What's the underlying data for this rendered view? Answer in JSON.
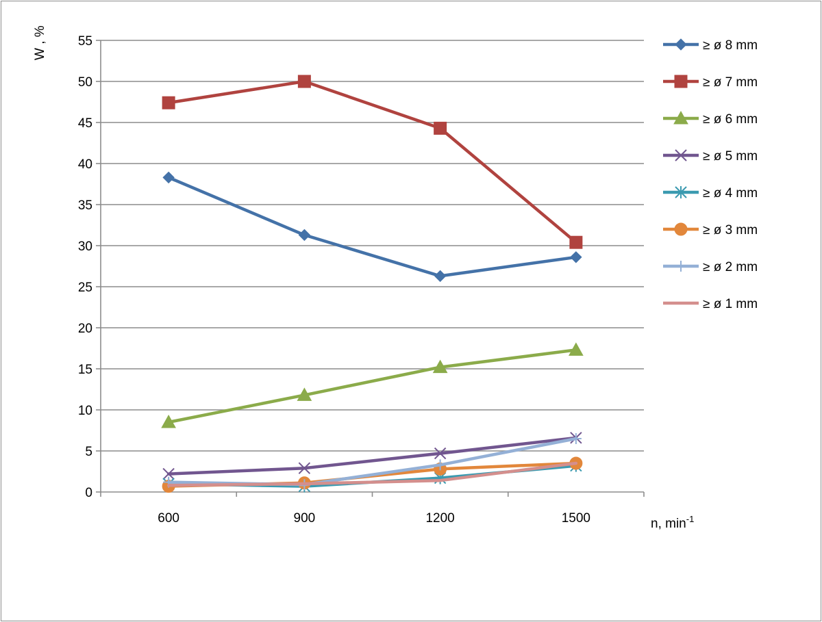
{
  "chart_data": {
    "type": "line",
    "title": "",
    "xlabel": "n,  min",
    "xlabel_sup": "-1",
    "ylabel": "W , %",
    "categories": [
      "600",
      "900",
      "1200",
      "1500"
    ],
    "ylim": [
      0,
      55
    ],
    "yticks": [
      0,
      5,
      10,
      15,
      20,
      25,
      30,
      35,
      40,
      45,
      50,
      55
    ],
    "grid": "horizontal",
    "legend_position": "right",
    "series": [
      {
        "name": "≥ ø 8 mm",
        "marker": "diamond",
        "color": "#4472a8",
        "values": [
          38.3,
          31.3,
          26.3,
          28.6
        ]
      },
      {
        "name": "≥ ø 7 mm",
        "marker": "square",
        "color": "#b0433f",
        "values": [
          47.4,
          50.0,
          44.3,
          30.4
        ]
      },
      {
        "name": "≥ ø 6 mm",
        "marker": "triangle",
        "color": "#8bab4a",
        "values": [
          8.5,
          11.8,
          15.2,
          17.3
        ]
      },
      {
        "name": "≥ ø 5 mm",
        "marker": "x",
        "color": "#71568f",
        "values": [
          2.2,
          2.9,
          4.7,
          6.6
        ]
      },
      {
        "name": "≥ ø 4 mm",
        "marker": "star",
        "color": "#3b9ab0",
        "values": [
          1.0,
          0.7,
          1.7,
          3.2
        ]
      },
      {
        "name": "≥ ø 3 mm",
        "marker": "circle",
        "color": "#e2873b",
        "values": [
          0.7,
          1.1,
          2.8,
          3.5
        ]
      },
      {
        "name": "≥ ø 2 mm",
        "marker": "plus",
        "color": "#94b0d6",
        "values": [
          1.2,
          0.9,
          3.3,
          6.5
        ]
      },
      {
        "name": "≥ ø 1 mm",
        "marker": "none",
        "color": "#d48f8d",
        "values": [
          0.8,
          1.0,
          1.4,
          3.5
        ]
      }
    ]
  }
}
